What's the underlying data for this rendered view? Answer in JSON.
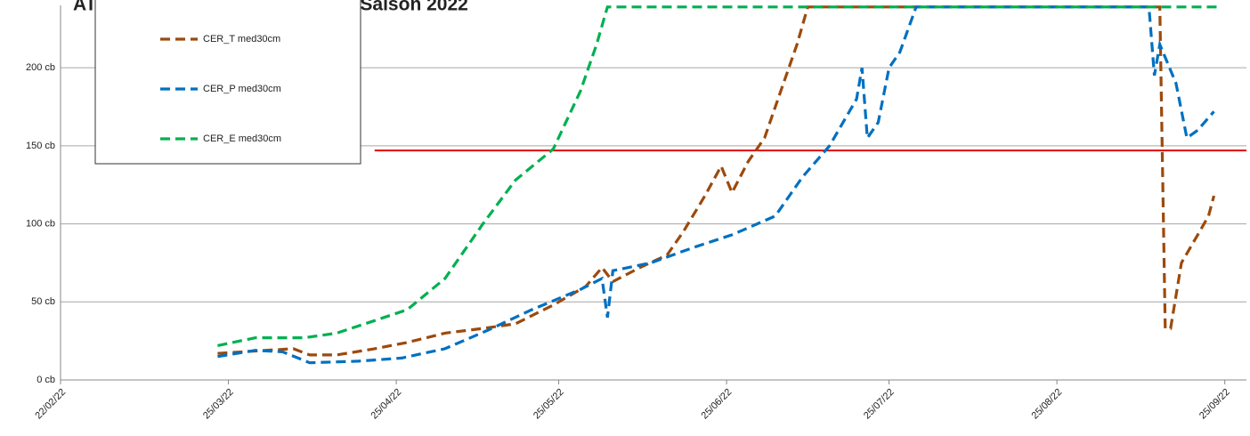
{
  "chart_data": {
    "type": "line",
    "title": "ATV49 - CER - Tensions du sol - Saison 2022",
    "xlim": [
      "2022-02-22",
      "2022-09-29"
    ],
    "xticks": [
      {
        "value": "2022-02-22",
        "label": "22/02/22"
      },
      {
        "value": "2022-03-25",
        "label": "25/03/22"
      },
      {
        "value": "2022-04-25",
        "label": "25/04/22"
      },
      {
        "value": "2022-05-25",
        "label": "25/05/22"
      },
      {
        "value": "2022-06-25",
        "label": "25/06/22"
      },
      {
        "value": "2022-07-25",
        "label": "25/07/22"
      },
      {
        "value": "2022-08-25",
        "label": "25/08/22"
      },
      {
        "value": "2022-09-25",
        "label": "25/09/22"
      }
    ],
    "ylim": [
      0,
      240
    ],
    "yticks": [
      {
        "value": 0,
        "label": "0 cb"
      },
      {
        "value": 50,
        "label": "50 cb"
      },
      {
        "value": 100,
        "label": "100 cb"
      },
      {
        "value": 150,
        "label": "150 cb"
      },
      {
        "value": 200,
        "label": "200 cb"
      }
    ],
    "grid": true,
    "legend": "top-left",
    "threshold": {
      "value": 147,
      "start": "2022-04-21",
      "color": "#e00000"
    },
    "series": [
      {
        "name": "CER_T med30cm",
        "color": "#9c4a0c",
        "x": [
          "2022-03-23",
          "2022-04-01",
          "2022-04-06",
          "2022-04-09",
          "2022-04-14",
          "2022-04-21",
          "2022-04-27",
          "2022-05-04",
          "2022-05-11",
          "2022-05-17",
          "2022-05-24",
          "2022-05-30",
          "2022-06-02",
          "2022-06-04",
          "2022-06-09",
          "2022-06-14",
          "2022-06-17",
          "2022-06-21",
          "2022-06-24",
          "2022-06-26",
          "2022-06-29",
          "2022-07-02",
          "2022-07-05",
          "2022-07-08",
          "2022-07-10",
          "2022-09-13",
          "2022-09-14",
          "2022-09-15",
          "2022-09-17",
          "2022-09-20",
          "2022-09-22",
          "2022-09-23"
        ],
        "values": [
          17,
          19,
          20,
          16,
          16,
          20,
          24,
          30,
          33,
          36,
          48,
          60,
          72,
          63,
          72,
          80,
          95,
          118,
          137,
          120,
          140,
          155,
          185,
          215,
          239,
          239,
          33,
          33,
          75,
          93,
          105,
          118
        ]
      },
      {
        "name": "CER_P med30cm",
        "color": "#0070c0",
        "x": [
          "2022-03-23",
          "2022-03-30",
          "2022-04-04",
          "2022-04-09",
          "2022-04-18",
          "2022-04-26",
          "2022-05-04",
          "2022-05-12",
          "2022-05-20",
          "2022-05-29",
          "2022-06-02",
          "2022-06-03",
          "2022-06-04",
          "2022-06-11",
          "2022-06-19",
          "2022-06-26",
          "2022-07-04",
          "2022-07-09",
          "2022-07-14",
          "2022-07-19",
          "2022-07-20",
          "2022-07-21",
          "2022-07-23",
          "2022-07-25",
          "2022-07-27",
          "2022-07-30",
          "2022-09-11",
          "2022-09-12",
          "2022-09-13",
          "2022-09-16",
          "2022-09-18",
          "2022-09-20",
          "2022-09-23"
        ],
        "values": [
          15,
          19,
          18,
          11,
          12,
          14,
          20,
          32,
          45,
          58,
          65,
          40,
          70,
          75,
          85,
          93,
          105,
          130,
          150,
          180,
          200,
          155,
          165,
          200,
          210,
          239,
          239,
          195,
          215,
          190,
          155,
          160,
          172
        ]
      },
      {
        "name": "CER_E med30cm",
        "color": "#00b050",
        "x": [
          "2022-03-23",
          "2022-03-30",
          "2022-04-08",
          "2022-04-14",
          "2022-04-21",
          "2022-04-27",
          "2022-05-04",
          "2022-05-11",
          "2022-05-17",
          "2022-05-24",
          "2022-05-29",
          "2022-06-01",
          "2022-06-03",
          "2022-09-24"
        ],
        "values": [
          22,
          27,
          27,
          30,
          38,
          45,
          65,
          100,
          128,
          148,
          185,
          215,
          239,
          239
        ]
      }
    ]
  }
}
